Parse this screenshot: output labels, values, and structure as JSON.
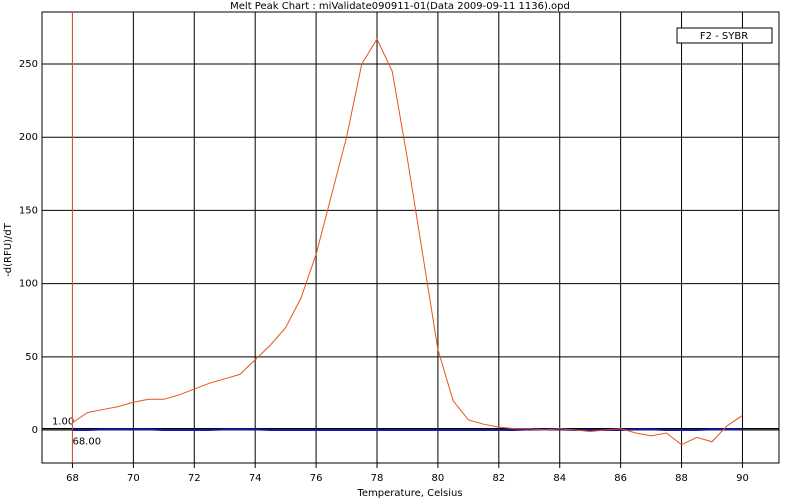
{
  "chart_data": {
    "type": "line",
    "title": "Melt Peak Chart : miValidate090911-01(Data 2009-09-11 1136).opd",
    "x_label": "Temperature, Celsius",
    "y_label": "-d(RFU)/dT",
    "x": [
      68,
      68.5,
      69,
      69.5,
      70,
      70.5,
      71,
      71.5,
      72,
      72.5,
      73,
      73.5,
      74,
      74.5,
      75,
      75.5,
      76,
      76.5,
      77,
      77.5,
      78,
      78.5,
      79,
      79.5,
      80,
      80.5,
      81,
      81.5,
      82,
      82.5,
      83,
      83.5,
      84,
      84.5,
      85,
      85.5,
      86,
      86.5,
      87,
      87.5,
      88,
      88.5,
      89,
      89.5,
      90
    ],
    "series": [
      {
        "name": "F2 - SYBR",
        "color": "#e8541c",
        "values": [
          5,
          12,
          14,
          16,
          19,
          21,
          21,
          24,
          28,
          32,
          35,
          38,
          48,
          58,
          70,
          90,
          120,
          160,
          200,
          250,
          267,
          245,
          185,
          120,
          55,
          20,
          7,
          4,
          2,
          1,
          1,
          0,
          1,
          0,
          -1,
          0,
          1,
          -2,
          -4,
          -2,
          -10,
          -5,
          -8,
          3,
          10
        ]
      },
      {
        "color": "#1a1aa0",
        "values": [
          0,
          0,
          0.5,
          0.5,
          0.5,
          0.5,
          0,
          0,
          0,
          0,
          0.5,
          0.5,
          0.5,
          0,
          0,
          0,
          0,
          0,
          0,
          0,
          0,
          0,
          0,
          0,
          0,
          0,
          0,
          0,
          0,
          0,
          0.5,
          0.5,
          0.5,
          0,
          0,
          0,
          0,
          0.5,
          0.5,
          0,
          0,
          0,
          0.5,
          0.5,
          0.5
        ]
      }
    ],
    "threshold": {
      "value": 1,
      "label": "1.00"
    },
    "cursor": {
      "value": 68,
      "label": "68.00"
    },
    "xlim": [
      67,
      91.2
    ],
    "ylim": [
      -22.5,
      285.5
    ],
    "xticks": [
      68,
      70,
      72,
      74,
      76,
      78,
      80,
      82,
      84,
      86,
      88,
      90
    ],
    "yticks": [
      0,
      50,
      100,
      150,
      200,
      250
    ],
    "grid": true
  }
}
